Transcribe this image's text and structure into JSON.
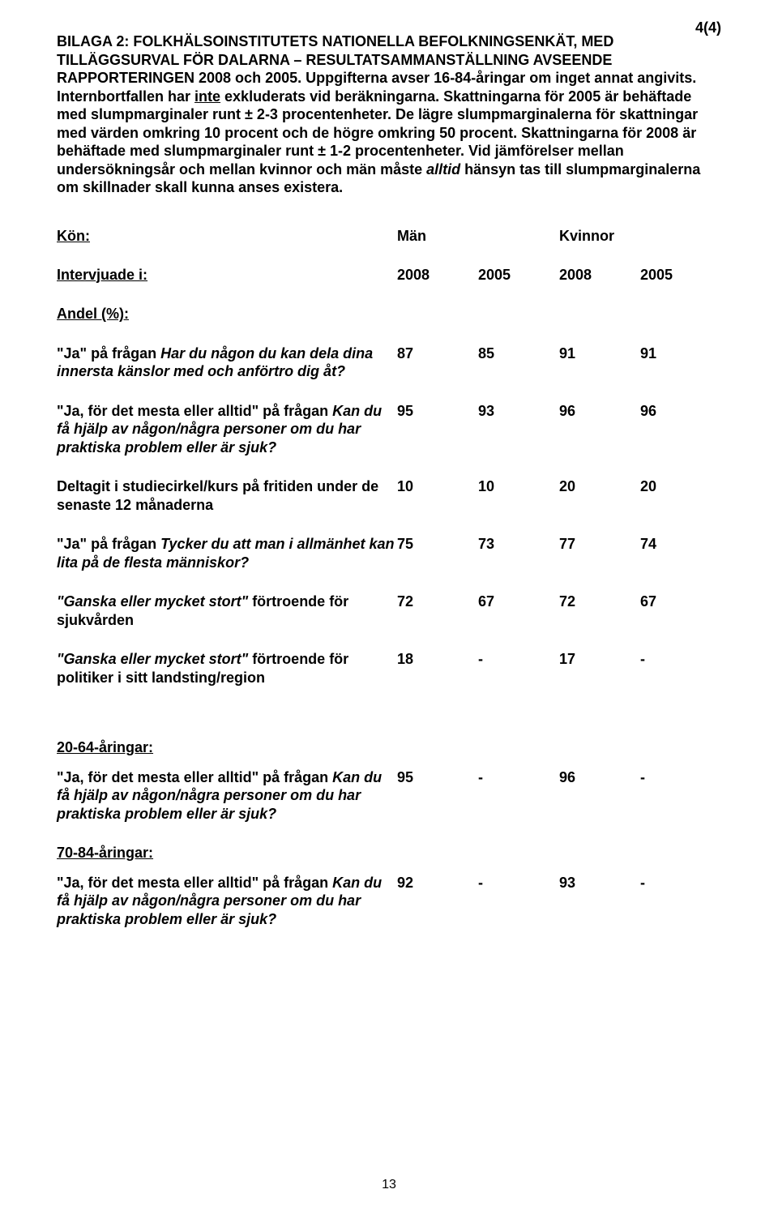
{
  "pageMarker": "4(4)",
  "title": {
    "line1": "BILAGA 2: FOLKHÄLSOINSTITUTETS NATIONELLA BEFOLKNINGSENKÄT, MED TILLÄGGSURVAL FÖR DALARNA – RESULTATSAMMANSTÄLLNING AVSEENDE RAPPORTERINGEN 2008 och 2005.",
    "pre_inte": "Uppgifterna avser 16-84-åringar om inget annat angivits. Internbortfallen har ",
    "inte": "inte",
    "post_inte": " exkluderats vid beräkningarna. Skattningarna för 2005 är behäftade med slumpmarginaler runt ± 2-3 procentenheter. De lägre slumpmarginalerna för skattningar med värden omkring 10 procent och de högre omkring 50 procent. Skattningarna för 2008 är behäftade med slumpmarginaler runt ± 1-2 procentenheter. Vid jämförelser mellan undersökningsår och mellan kvinnor och män måste ",
    "alltid": "alltid",
    "post_alltid": " hänsyn tas till slumpmarginalerna om skillnader skall kunna anses existera."
  },
  "header": {
    "kon_label": "Kön:",
    "kon_man": "Män",
    "kon_kvinnor": "Kvinnor",
    "intervjuade_label": "Intervjuade i:",
    "yrs": [
      "2008",
      "2005",
      "2008",
      "2005"
    ]
  },
  "andel_label": "Andel (%):",
  "rows": [
    {
      "q_pre": "\"Ja\" på frågan ",
      "q_it": "Har du någon du kan dela dina innersta känslor med och anförtro dig åt?",
      "v": [
        "87",
        "85",
        "91",
        "91"
      ]
    },
    {
      "q_pre": "\"Ja, för det mesta eller alltid\" på frågan ",
      "q_it": "Kan du få hjälp av någon/några personer om du har praktiska problem eller är sjuk?",
      "v": [
        "95",
        "93",
        "96",
        "96"
      ]
    },
    {
      "q_pre": "Deltagit i studiecirkel/kurs på fritiden under de senaste 12 månaderna",
      "q_it": "",
      "v": [
        "10",
        "10",
        "20",
        "20"
      ]
    },
    {
      "q_pre": "\"Ja\" på frågan ",
      "q_it": "Tycker du att man i allmänhet kan lita på de flesta människor?",
      "v": [
        "75",
        "73",
        "77",
        "74"
      ]
    },
    {
      "q_pre": "\"Ganska eller mycket stort\"",
      "q_post": " förtroende för sjukvården",
      "q_it": "",
      "v": [
        "72",
        "67",
        "72",
        "67"
      ]
    },
    {
      "q_pre": "\"Ganska eller mycket stort\"",
      "q_post": " förtroende för politiker i sitt landsting/region",
      "q_it": "",
      "v": [
        "18",
        "-",
        "17",
        "-"
      ]
    }
  ],
  "group2": {
    "heading": "20-64-åringar:",
    "q_pre": "\"Ja, för det mesta eller alltid\" på frågan ",
    "q_it": "Kan du få hjälp av någon/några personer om du har praktiska problem eller är sjuk?",
    "v": [
      "95",
      "-",
      "96",
      "-"
    ]
  },
  "group3": {
    "heading": "70-84-åringar:",
    "q_pre": "\"Ja, för det mesta eller alltid\" på frågan ",
    "q_it": "Kan du få hjälp av någon/några personer om du har praktiska problem eller är sjuk?",
    "v": [
      "92",
      "-",
      "93",
      "-"
    ]
  },
  "footer_page": "13"
}
